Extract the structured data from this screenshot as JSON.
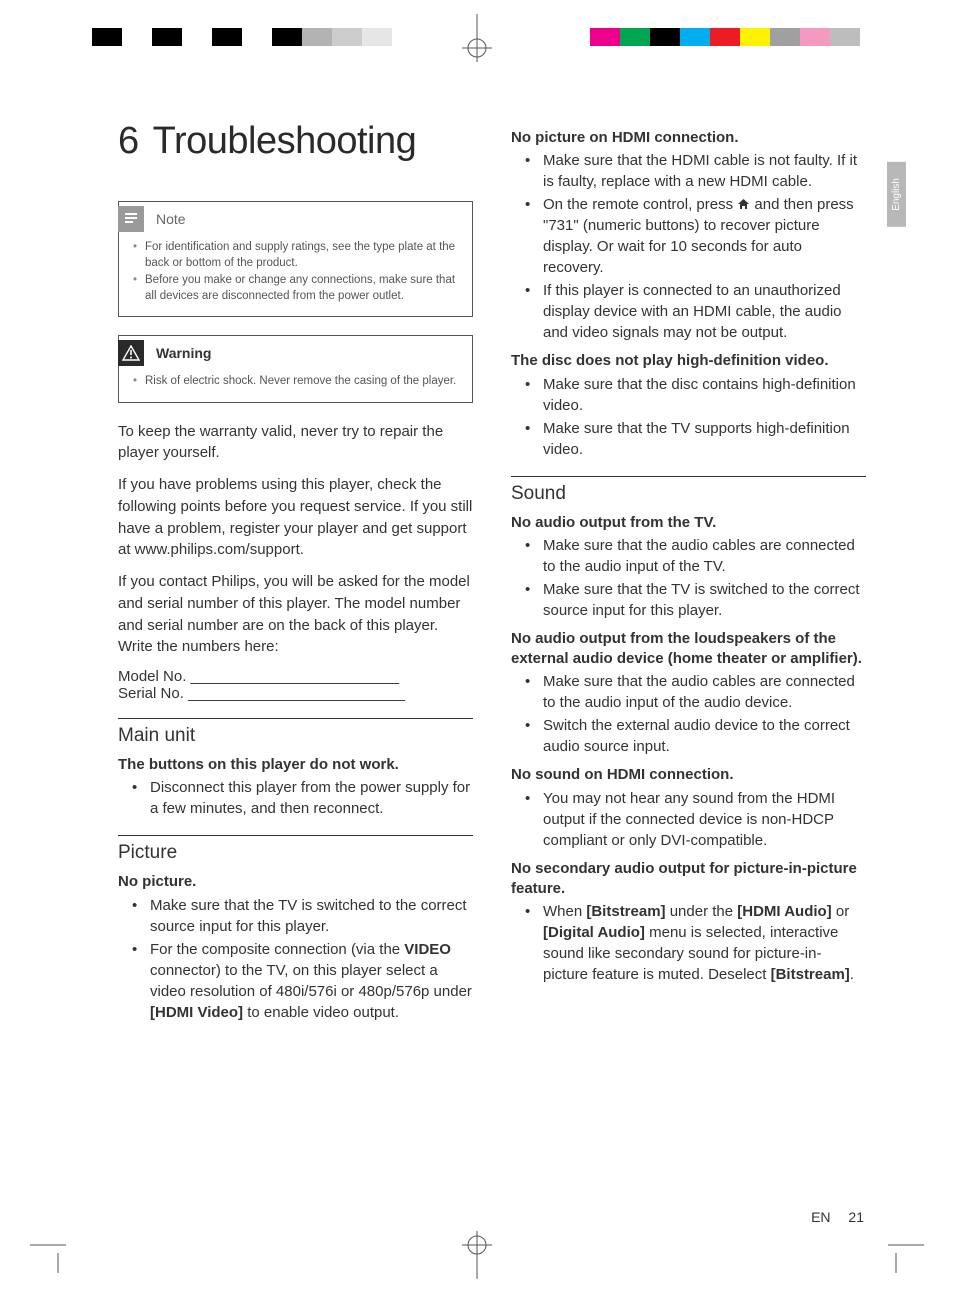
{
  "registration_bars": {
    "left_colors": [
      "#000000",
      "#ffffff",
      "#000000",
      "#ffffff",
      "#000000",
      "#ffffff",
      "#000000",
      "#b3b3b3",
      "#cccccc",
      "#e6e6e6"
    ],
    "right_colors": [
      "#ffffff",
      "#ec008c",
      "#00a651",
      "#000000",
      "#00aeef",
      "#ed1c24",
      "#fff200",
      "#a0a0a0",
      "#f49ac1",
      "#bdbdbd"
    ]
  },
  "language_tab": "English",
  "chapter": {
    "number": "6",
    "title": "Troubleshooting"
  },
  "note_box": {
    "label": "Note",
    "items": [
      "For identification and supply ratings, see the type plate at the back or bottom of the product.",
      "Before you make or change any connections, make sure that all devices are disconnected from the power outlet."
    ]
  },
  "warning_box": {
    "label": "Warning",
    "items": [
      "Risk of electric shock. Never remove the casing of the player."
    ]
  },
  "intro": {
    "p1": "To keep the warranty valid, never try to repair the player yourself.",
    "p2": "If you have problems using this player, check the following points before you request service. If you still have a problem, register your player and get support at www.philips.com/support.",
    "p3": "If you contact Philips, you will be asked for the model and serial number of this player. The model number and serial number are on the back of this player. Write the numbers here:",
    "model": "Model No. _________________________",
    "serial": "Serial No. __________________________"
  },
  "sections": {
    "main_unit": {
      "title": "Main unit",
      "sub1": "The buttons on this player do not work.",
      "sub1_items": [
        "Disconnect this player from the power supply for a few minutes, and then reconnect."
      ]
    },
    "picture": {
      "title": "Picture",
      "sub1": "No picture.",
      "sub1_items": [
        "Make sure that the TV is switched to the correct source input for this player.",
        "For the composite connection (via the VIDEO connector) to the TV, on this player select a video resolution of 480i/576i or 480p/576p under [HDMI Video] to enable video output."
      ],
      "sub2": "No picture on HDMI connection.",
      "sub2_items": [
        "Make sure that the HDMI cable is not faulty. If it is faulty, replace with a new HDMI cable.",
        "On the remote control, press ⌂ and then press \"731\" (numeric buttons) to recover picture display. Or wait for 10 seconds for auto recovery.",
        "If this player is connected to an unauthorized display device with an HDMI cable, the audio and video signals may not be output."
      ],
      "sub3": "The disc does not play high-definition video.",
      "sub3_items": [
        "Make sure that the disc contains high-definition video.",
        "Make sure that the TV supports high-definition video."
      ]
    },
    "sound": {
      "title": "Sound",
      "sub1": "No audio output from the TV.",
      "sub1_items": [
        "Make sure that the audio cables are connected to the audio input of the TV.",
        "Make sure that the TV is switched to the correct source input for this player."
      ],
      "sub2": "No audio output from the loudspeakers of the external audio device (home theater or amplifier).",
      "sub2_items": [
        "Make sure that the audio cables are connected to the audio input of the audio device.",
        "Switch the external audio device to the correct audio source input."
      ],
      "sub3": "No sound on HDMI connection.",
      "sub3_items": [
        "You may not hear any sound from the HDMI output if the connected device is non-HDCP compliant or only DVI-compatible."
      ],
      "sub4": "No secondary audio output for picture-in-picture feature.",
      "sub4_items": [
        "When [Bitstream] under the [HDMI Audio] or [Digital Audio] menu is selected, interactive sound like secondary sound for picture-in-picture feature is muted. Deselect [Bitstream]."
      ]
    }
  },
  "footer": {
    "lang": "EN",
    "page": "21"
  }
}
